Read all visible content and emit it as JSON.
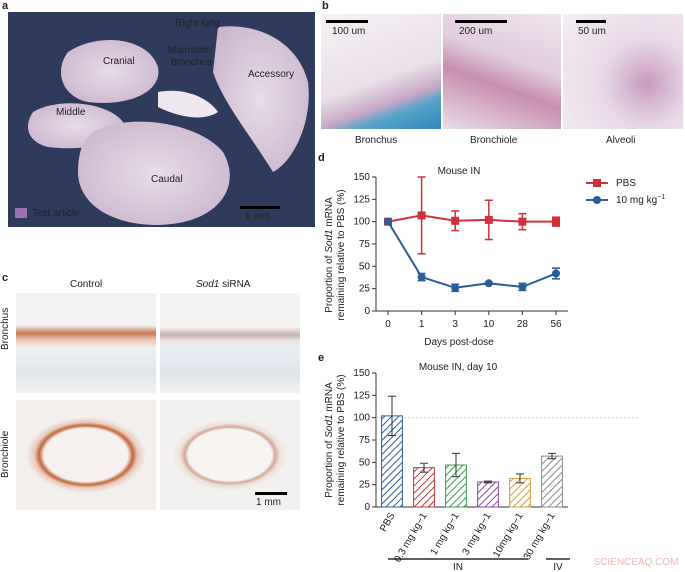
{
  "panel_a": {
    "letter": "a",
    "labels": {
      "right_lung": "Right lung",
      "mainstem": "Mainstem",
      "bronchus": "bronchus",
      "cranial": "Cranial",
      "accessory": "Accessory",
      "middle": "Middle",
      "caudal": "Caudal"
    },
    "legend": "Test article",
    "scale": "1 mm"
  },
  "panel_b": {
    "letter": "b",
    "images": [
      {
        "caption": "Bronchus",
        "scale": "100 um"
      },
      {
        "caption": "Bronchiole",
        "scale": "200 um"
      },
      {
        "caption": "Alveoli",
        "scale": "50 um"
      }
    ]
  },
  "panel_c": {
    "letter": "c",
    "col_control": "Control",
    "col_sod1": "Sod1",
    "col_sirna": " siRNA",
    "row1": "Bronchus",
    "row2": "Bronchiole",
    "scale": "1 mm"
  },
  "chart_d_meta": {
    "letter": "d",
    "title": "Mouse IN",
    "ylabel_line1_a": "Proportion of ",
    "ylabel_line1_b": "Sod1",
    "ylabel_line1_c": " mRNA",
    "ylabel_line2": "remaining relative to PBS (%)",
    "xlabel": "Days post-dose",
    "legend_pbs": "PBS",
    "legend_dose": "10 mg kg",
    "legend_dose_sup": "−1"
  },
  "chart_e_meta": {
    "letter": "e",
    "title": "Mouse IN, day 10",
    "group_in": "IN",
    "group_iv": "IV",
    "watermark": "SCIENCEAQ.COM"
  },
  "chart_data": [
    {
      "type": "line",
      "title": "Mouse IN",
      "x": [
        0,
        1,
        3,
        10,
        28,
        56
      ],
      "xlabel": "Days post-dose",
      "ylabel": "Proportion of Sod1 mRNA remaining relative to PBS (%)",
      "ylim": [
        0,
        150
      ],
      "yticks": [
        0,
        25,
        50,
        75,
        100,
        125,
        150
      ],
      "series": [
        {
          "name": "PBS",
          "color": "#d0303a",
          "marker": "square",
          "values": [
            100,
            107,
            101,
            102,
            100,
            100
          ],
          "err": [
            2,
            43,
            11,
            22,
            9,
            5
          ]
        },
        {
          "name": "10 mg kg−1",
          "color": "#2a5c9a",
          "marker": "circle",
          "values": [
            100,
            38,
            26,
            31,
            27,
            42
          ],
          "err": [
            0,
            4,
            4,
            1,
            4,
            6
          ]
        }
      ]
    },
    {
      "type": "bar",
      "title": "Mouse IN, day 10",
      "categories": [
        "PBS",
        "0.3 mg kg−1",
        "1 mg kg−1",
        "3 mg kg−1",
        "10mg kg−1",
        "30 mg kg−1"
      ],
      "values": [
        102,
        44,
        47,
        28,
        32,
        57
      ],
      "err": [
        22,
        5,
        13,
        1,
        5,
        3
      ],
      "colors": [
        "#2e5c99",
        "#c43a3a",
        "#3e9c4e",
        "#8e4aa0",
        "#d89a3a",
        "#8a8a8a"
      ],
      "ylabel": "Proportion of Sod1 mRNA remaining relative to PBS (%)",
      "ylim": [
        0,
        150
      ],
      "yticks": [
        0,
        25,
        50,
        75,
        100,
        125,
        150
      ],
      "reference_line": 100
    }
  ]
}
